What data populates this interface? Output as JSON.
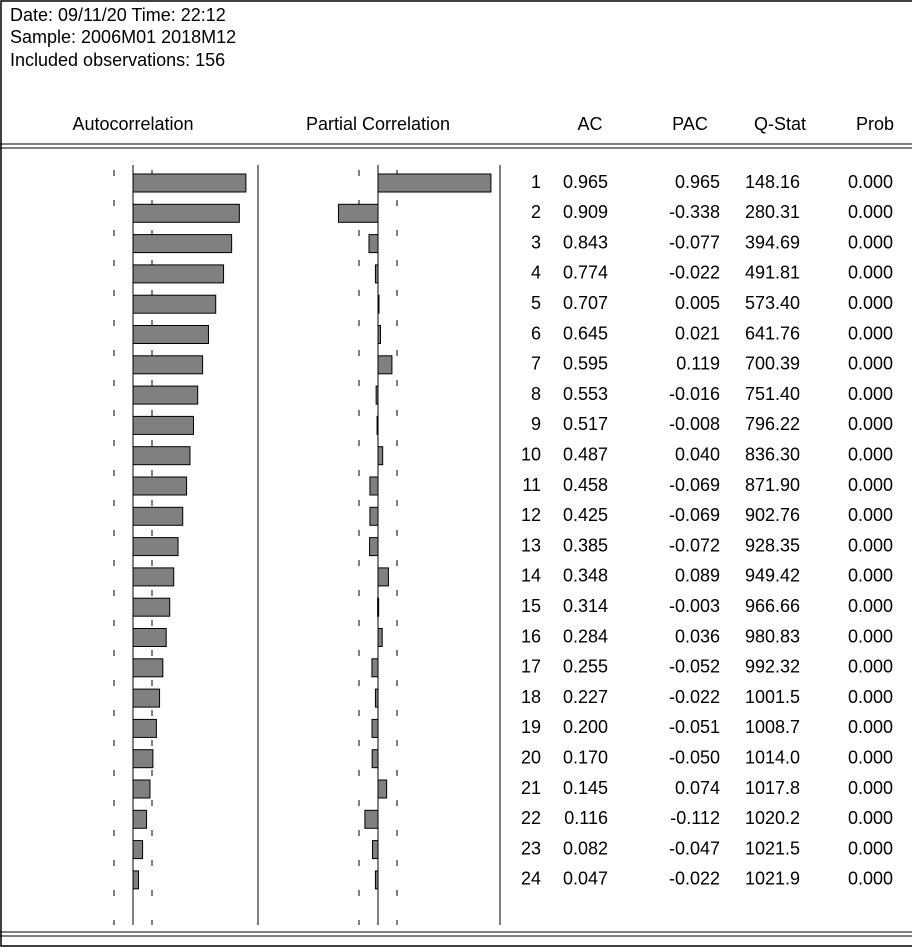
{
  "header": {
    "date_line": "Date: 09/11/20   Time: 22:12",
    "sample": "Sample: 2006M01 2018M12",
    "observations": "Included observations: 156"
  },
  "columns": [
    "Autocorrelation",
    "Partial Correlation",
    "AC",
    "PAC",
    "Q-Stat",
    "Prob"
  ],
  "table": {
    "rows": [
      [
        "1",
        "0.965",
        "0.965",
        "148.16",
        "0.000"
      ],
      [
        "2",
        "0.909",
        "-0.338",
        "280.31",
        "0.000"
      ],
      [
        "3",
        "0.843",
        "-0.077",
        "394.69",
        "0.000"
      ],
      [
        "4",
        "0.774",
        "-0.022",
        "491.81",
        "0.000"
      ],
      [
        "5",
        "0.707",
        "0.005",
        "573.40",
        "0.000"
      ],
      [
        "6",
        "0.645",
        "0.021",
        "641.76",
        "0.000"
      ],
      [
        "7",
        "0.595",
        "0.119",
        "700.39",
        "0.000"
      ],
      [
        "8",
        "0.553",
        "-0.016",
        "751.40",
        "0.000"
      ],
      [
        "9",
        "0.517",
        "-0.008",
        "796.22",
        "0.000"
      ],
      [
        "10",
        "0.487",
        "0.040",
        "836.30",
        "0.000"
      ],
      [
        "11",
        "0.458",
        "-0.069",
        "871.90",
        "0.000"
      ],
      [
        "12",
        "0.425",
        "-0.069",
        "902.76",
        "0.000"
      ],
      [
        "13",
        "0.385",
        "-0.072",
        "928.35",
        "0.000"
      ],
      [
        "14",
        "0.348",
        "0.089",
        "949.42",
        "0.000"
      ],
      [
        "15",
        "0.314",
        "-0.003",
        "966.66",
        "0.000"
      ],
      [
        "16",
        "0.284",
        "0.036",
        "980.83",
        "0.000"
      ],
      [
        "17",
        "0.255",
        "-0.052",
        "992.32",
        "0.000"
      ],
      [
        "18",
        "0.227",
        "-0.022",
        "1001.5",
        "0.000"
      ],
      [
        "19",
        "0.200",
        "-0.051",
        "1008.7",
        "0.000"
      ],
      [
        "20",
        "0.170",
        "-0.050",
        "1014.0",
        "0.000"
      ],
      [
        "21",
        "0.145",
        "0.074",
        "1017.8",
        "0.000"
      ],
      [
        "22",
        "0.116",
        "-0.112",
        "1020.2",
        "0.000"
      ],
      [
        "23",
        "0.082",
        "-0.047",
        "1021.5",
        "0.000"
      ],
      [
        "24",
        "0.047",
        "-0.022",
        "1021.9",
        "0.000"
      ]
    ]
  }
}
